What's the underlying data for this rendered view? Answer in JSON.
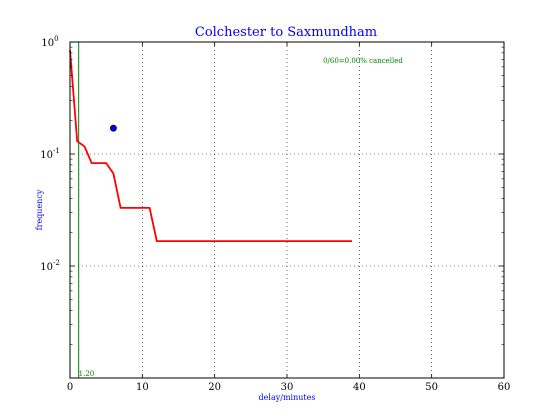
{
  "chart_data": {
    "type": "line",
    "title": "Colchester to Saxmundham",
    "xlabel": "delay/minutes",
    "ylabel": "frequency",
    "xlim": [
      0,
      60
    ],
    "ylim": [
      0.001,
      1
    ],
    "yscale": "log",
    "grid": true,
    "x_ticks": [
      "0",
      "10",
      "20",
      "30",
      "40",
      "50",
      "60"
    ],
    "y_ticks": [
      {
        "base": "10",
        "exp": "0"
      },
      {
        "base": "10",
        "exp": "-1"
      },
      {
        "base": "10",
        "exp": "-2"
      }
    ],
    "annotation": "0/60=0.00% cancelled",
    "vline_label": "1.20",
    "vline_x": 1.2,
    "point": {
      "x": 6,
      "y": 0.17
    },
    "series": [
      {
        "color": "#ff0000",
        "x": [
          0,
          1,
          2,
          3,
          5,
          6,
          7,
          11,
          12,
          39
        ],
        "y": [
          0.85,
          0.13,
          0.117,
          0.083,
          0.083,
          0.067,
          0.033,
          0.033,
          0.0167,
          0.0167
        ]
      }
    ],
    "colors": {
      "line": "#ff0000",
      "vline": "#008000",
      "point": "#0000ff",
      "text": "#0000ff"
    }
  }
}
